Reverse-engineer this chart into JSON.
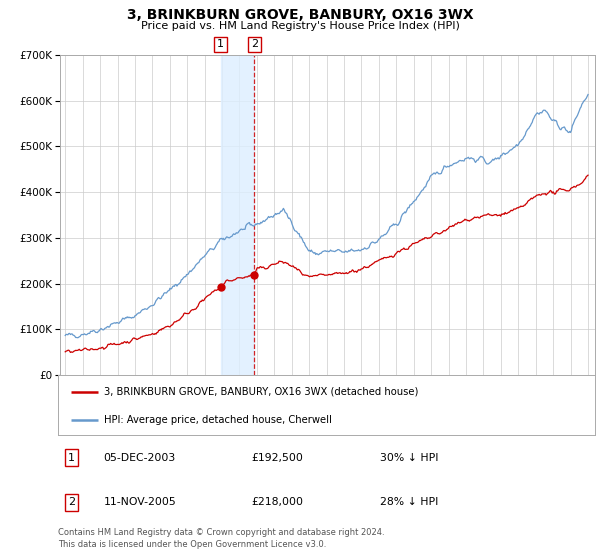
{
  "title": "3, BRINKBURN GROVE, BANBURY, OX16 3WX",
  "subtitle": "Price paid vs. HM Land Registry's House Price Index (HPI)",
  "legend_label_red": "3, BRINKBURN GROVE, BANBURY, OX16 3WX (detached house)",
  "legend_label_blue": "HPI: Average price, detached house, Cherwell",
  "transaction1_date": "05-DEC-2003",
  "transaction1_price": "£192,500",
  "transaction1_hpi": "30% ↓ HPI",
  "transaction1_year": 2003.92,
  "transaction1_value": 192500,
  "transaction2_date": "11-NOV-2005",
  "transaction2_price": "£218,000",
  "transaction2_hpi": "28% ↓ HPI",
  "transaction2_year": 2005.86,
  "transaction2_value": 218000,
  "footnote": "Contains HM Land Registry data © Crown copyright and database right 2024.\nThis data is licensed under the Open Government Licence v3.0.",
  "ylim": [
    0,
    700000
  ],
  "bg_color": "#ffffff",
  "grid_color": "#cccccc",
  "red_color": "#cc0000",
  "blue_color": "#6699cc",
  "span_color": "#ddeeff",
  "hpi_anchors_x": [
    1995,
    1996,
    1997,
    1998,
    1999,
    2000,
    2001,
    2002,
    2003,
    2004,
    2005,
    2006,
    2007,
    2007.5,
    2008,
    2009,
    2009.5,
    2010,
    2011,
    2012,
    2013,
    2014,
    2015,
    2016,
    2016.5,
    2017,
    2018,
    2019,
    2019.5,
    2020,
    2021,
    2022,
    2022.5,
    2023,
    2024,
    2024.5,
    2025
  ],
  "hpi_anchors_v": [
    85000,
    90000,
    100000,
    115000,
    130000,
    155000,
    185000,
    220000,
    260000,
    295000,
    315000,
    330000,
    350000,
    360000,
    335000,
    270000,
    265000,
    270000,
    268000,
    275000,
    295000,
    330000,
    380000,
    430000,
    445000,
    460000,
    475000,
    470000,
    465000,
    480000,
    505000,
    570000,
    580000,
    555000,
    530000,
    580000,
    615000
  ],
  "red_anchors_x": [
    1995,
    1996,
    1997,
    1998,
    1999,
    2000,
    2001,
    2002,
    2003,
    2003.92,
    2004.3,
    2005,
    2005.86,
    2006,
    2007,
    2007.5,
    2008,
    2009,
    2010,
    2011,
    2012,
    2013,
    2014,
    2015,
    2016,
    2017,
    2018,
    2019,
    2020,
    2021,
    2022,
    2022.5,
    2023,
    2024,
    2024.5,
    2025
  ],
  "red_anchors_v": [
    50000,
    53000,
    60000,
    68000,
    78000,
    90000,
    108000,
    135000,
    165000,
    192500,
    205000,
    212000,
    218000,
    230000,
    242000,
    248000,
    238000,
    212000,
    218000,
    222000,
    232000,
    248000,
    268000,
    285000,
    302000,
    320000,
    340000,
    348000,
    350000,
    362000,
    390000,
    400000,
    398000,
    408000,
    418000,
    435000
  ]
}
